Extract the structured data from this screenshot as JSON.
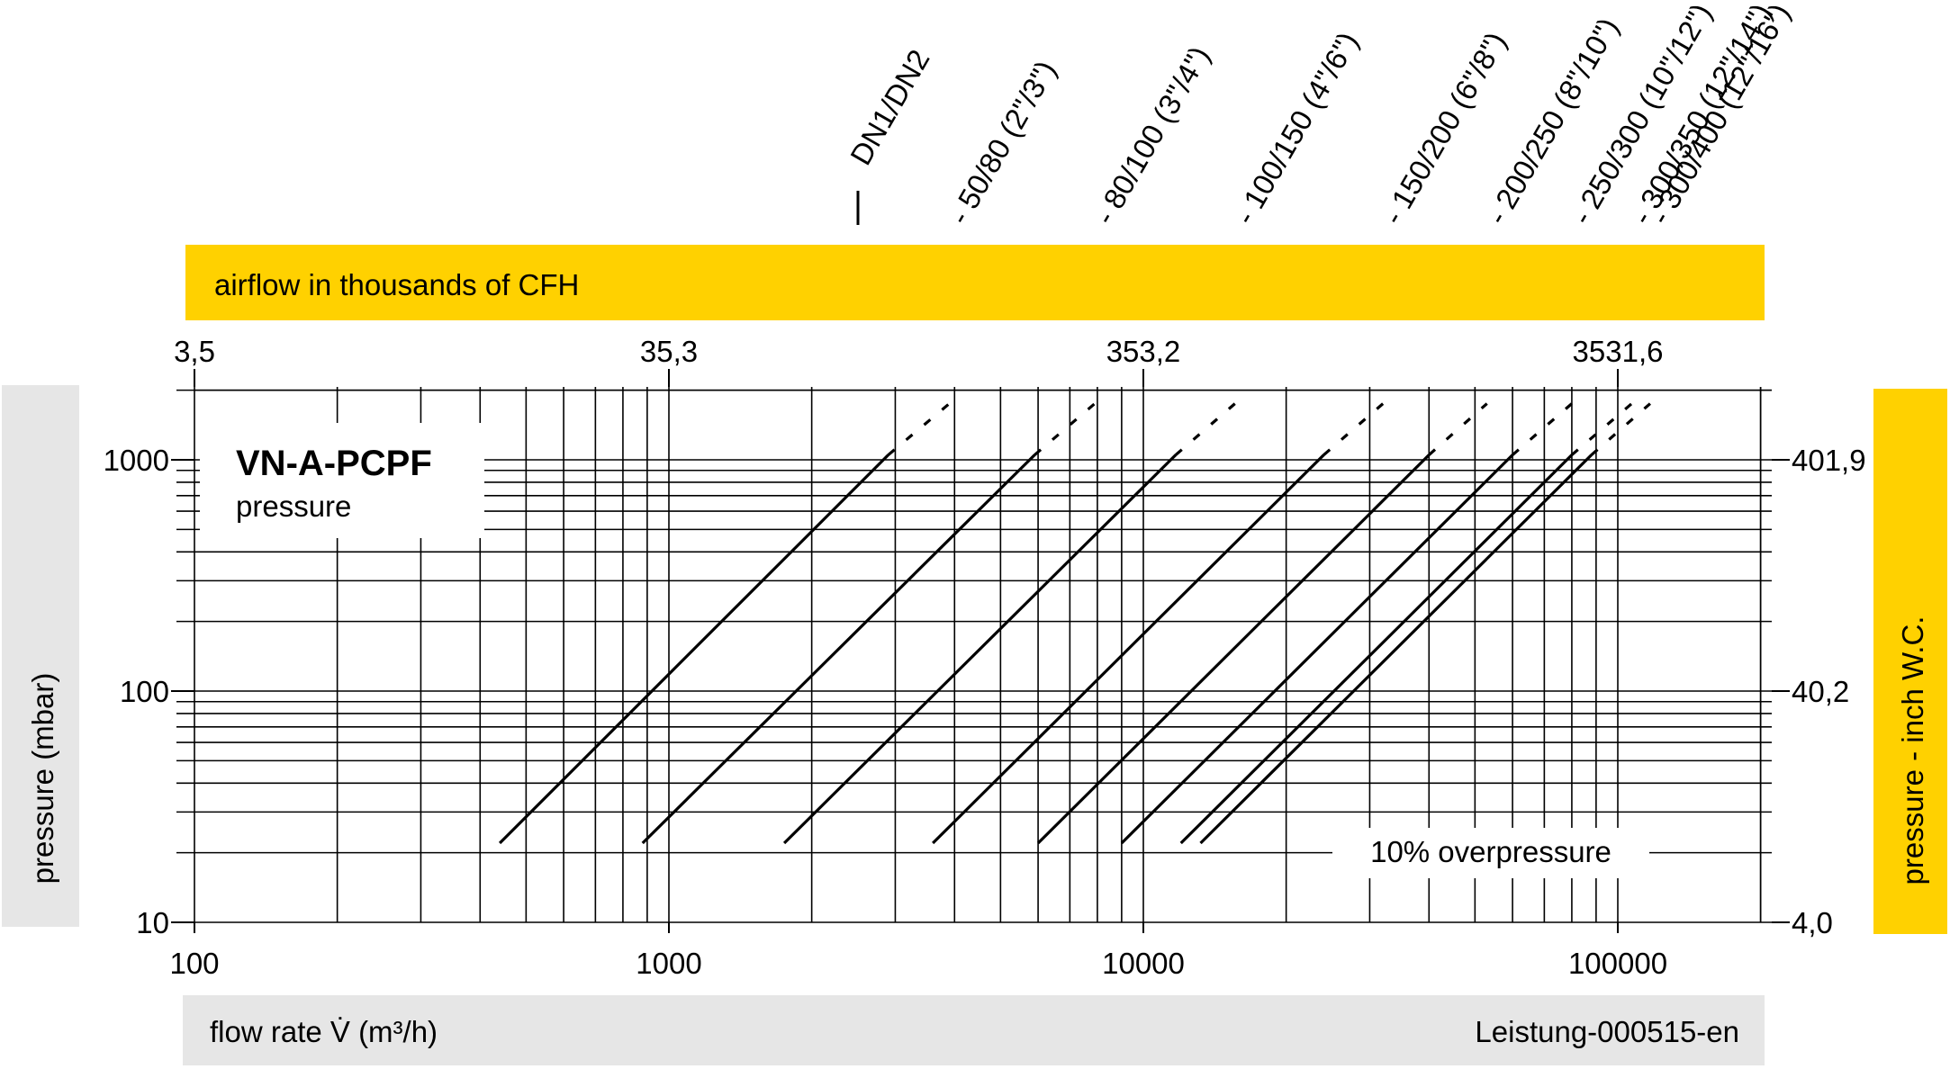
{
  "chart_data": {
    "type": "line",
    "title": "VN-A-PCPF",
    "subtitle": "pressure",
    "xlabel": "flow rate V̇ (m³/h)",
    "ylabel": "pressure (mbar)",
    "ylabel_right": "pressure  - inch W.C.",
    "top_axis_label": "airflow in thousands of CFH",
    "footer_code": "Leistung-000515-en",
    "annotation": "10% overpressure",
    "x_scale": "log",
    "y_scale": "log",
    "xlim": [
      100,
      200000
    ],
    "ylim": [
      10,
      2300
    ],
    "grid": true,
    "x_ticks": [
      {
        "value": 100,
        "label": "100"
      },
      {
        "value": 1000,
        "label": "1000"
      },
      {
        "value": 10000,
        "label": "10000"
      },
      {
        "value": 100000,
        "label": "100000"
      }
    ],
    "y_ticks": [
      {
        "value": 10,
        "label": "10"
      },
      {
        "value": 100,
        "label": "100"
      },
      {
        "value": 1000,
        "label": "1000"
      }
    ],
    "top_ticks": [
      {
        "value": 100,
        "label": "3,5"
      },
      {
        "value": 1000,
        "label": "35,3"
      },
      {
        "value": 10000,
        "label": "353,2"
      },
      {
        "value": 100000,
        "label": "3531,6"
      }
    ],
    "right_ticks": [
      {
        "value": 10,
        "label": "4,0"
      },
      {
        "value": 100,
        "label": "40,2"
      },
      {
        "value": 1000,
        "label": "401,9"
      }
    ],
    "size_header": "DN1/DN2",
    "series": [
      {
        "name": "50/80 (2\"/3\")",
        "points": [
          [
            440,
            22
          ],
          [
            2900,
            1050
          ]
        ],
        "dashed_to": [
          3900,
          1750
        ]
      },
      {
        "name": "80/100 (3\"/4\")",
        "points": [
          [
            880,
            22
          ],
          [
            5900,
            1050
          ]
        ],
        "dashed_to": [
          7900,
          1750
        ]
      },
      {
        "name": "100/150 (4\"/6\")",
        "points": [
          [
            1750,
            22
          ],
          [
            11700,
            1050
          ]
        ],
        "dashed_to": [
          15600,
          1750
        ]
      },
      {
        "name": "150/200 (6\"/8\")",
        "points": [
          [
            3600,
            22
          ],
          [
            24000,
            1050
          ]
        ],
        "dashed_to": [
          32000,
          1750
        ]
      },
      {
        "name": "200/250 (8\"/10\")",
        "points": [
          [
            6000,
            22
          ],
          [
            40000,
            1050
          ]
        ],
        "dashed_to": [
          53000,
          1750
        ]
      },
      {
        "name": "250/300 (10\"/12\")",
        "points": [
          [
            9000,
            22
          ],
          [
            60000,
            1050
          ]
        ],
        "dashed_to": [
          80000,
          1750
        ]
      },
      {
        "name": "300/350 (12\"/14\")",
        "points": [
          [
            12000,
            22
          ],
          [
            80000,
            1050
          ]
        ],
        "dashed_to": [
          107000,
          1750
        ]
      },
      {
        "name": "300/400 (12\"/16\")",
        "points": [
          [
            13200,
            22
          ],
          [
            88000,
            1050
          ]
        ],
        "dashed_to": [
          117000,
          1750
        ]
      }
    ]
  },
  "colors": {
    "accent_yellow": "#FFD100",
    "panel_grey": "#E6E6E6",
    "ink": "#000000"
  }
}
